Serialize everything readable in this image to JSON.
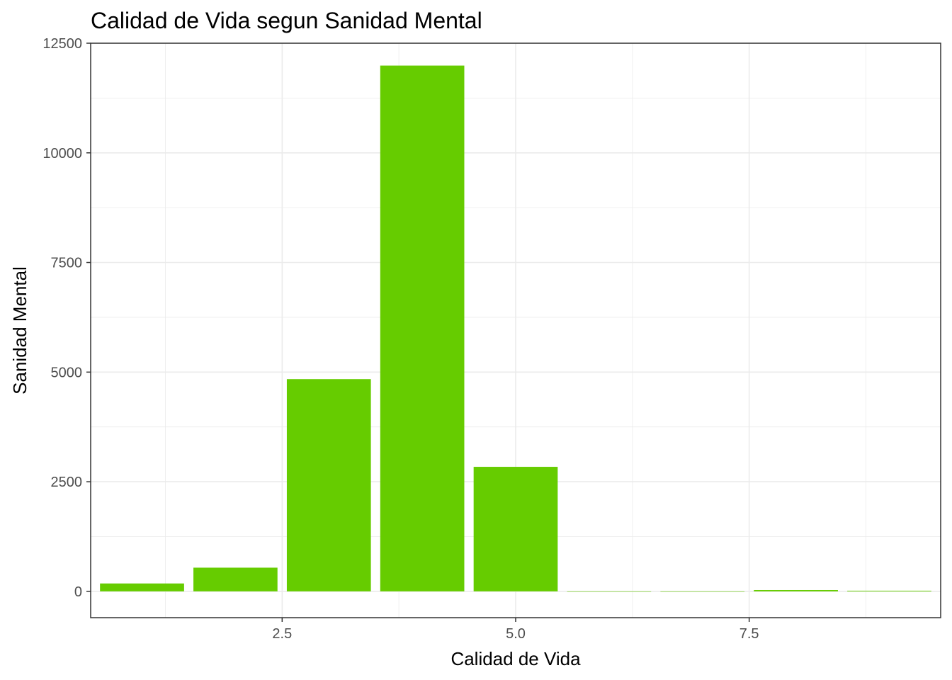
{
  "chart_data": {
    "type": "bar",
    "title": "Calidad de Vida segun Sanidad Mental",
    "xlabel": "Calidad de Vida",
    "ylabel": "Sanidad Mental",
    "x": [
      1,
      2,
      3,
      4,
      5,
      6,
      7,
      8,
      9
    ],
    "values": [
      180,
      540,
      4840,
      11990,
      2840,
      0,
      0,
      30,
      15
    ],
    "bar_width": 0.9,
    "xlim": [
      0.45,
      9.55
    ],
    "ylim": [
      -600,
      12500
    ],
    "x_ticks": [
      2.5,
      5.0,
      7.5
    ],
    "x_tick_labels": [
      "2.5",
      "5.0",
      "7.5"
    ],
    "y_ticks": [
      0,
      2500,
      5000,
      7500,
      10000,
      12500
    ],
    "y_tick_labels": [
      "0",
      "2500",
      "5000",
      "7500",
      "10000",
      "12500"
    ],
    "grid": true,
    "legend": "none",
    "colors": {
      "bar": "#66CC00",
      "grid": "#ebebeb",
      "panel_border": "#333333",
      "tick_text": "#4d4d4d",
      "background": "#ffffff"
    }
  }
}
